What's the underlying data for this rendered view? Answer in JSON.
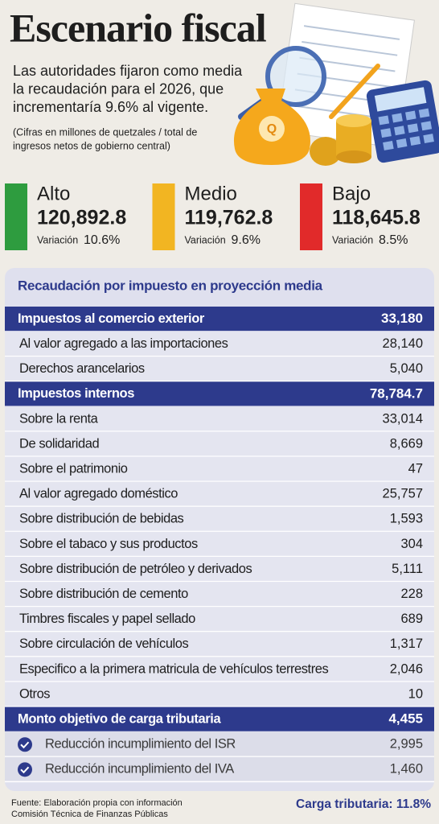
{
  "title": "Escenario fiscal",
  "subtitle": [
    "Las autoridades fijaron como media",
    "la recaudación para el 2026, que",
    "incrementaría 9.6% al vigente."
  ],
  "note": [
    "(Cifras en millones de quetzales / total de",
    "ingresos netos de gobierno central)"
  ],
  "scenarios": [
    {
      "label": "Alto",
      "value": "120,892.8",
      "variation_label": "Variación",
      "variation": "10.6%",
      "color": "#2e9c3f"
    },
    {
      "label": "Medio",
      "value": "119,762.8",
      "variation_label": "Variación",
      "variation": "9.6%",
      "color": "#f2b522"
    },
    {
      "label": "Bajo",
      "value": "118,645.8",
      "variation_label": "Variación",
      "variation": "8.5%",
      "color": "#e12a2a"
    }
  ],
  "table": {
    "heading": "Recaudación por impuesto en proyección media",
    "sections": [
      {
        "title": "Impuestos al comercio exterior",
        "value": "33,180",
        "rows": [
          {
            "label": "Al valor agregado a las importaciones",
            "value": "28,140"
          },
          {
            "label": "Derechos arancelarios",
            "value": "5,040"
          }
        ]
      },
      {
        "title": "Impuestos internos",
        "value": "78,784.7",
        "rows": [
          {
            "label": "Sobre la renta",
            "value": "33,014"
          },
          {
            "label": "De solidaridad",
            "value": "8,669"
          },
          {
            "label": "Sobre el patrimonio",
            "value": "47"
          },
          {
            "label": "Al valor agregado doméstico",
            "value": "25,757"
          },
          {
            "label": "Sobre distribución de bebidas",
            "value": "1,593"
          },
          {
            "label": "Sobre el tabaco y sus productos",
            "value": "304"
          },
          {
            "label": "Sobre distribución de petróleo y derivados",
            "value": "5,111"
          },
          {
            "label": "Sobre distribución de cemento",
            "value": "228"
          },
          {
            "label": "Timbres fiscales y papel sellado",
            "value": "689"
          },
          {
            "label": "Sobre circulación de vehículos",
            "value": "1,317"
          },
          {
            "label": "Especifico a la primera matricula de vehículos terrestres",
            "value": "2,046"
          },
          {
            "label": "Otros",
            "value": "10"
          }
        ]
      },
      {
        "title": "Monto objetivo de carga tributaria",
        "value": "4,455",
        "checked": true,
        "rows": [
          {
            "label": "Reducción incumplimiento del ISR",
            "value": "2,995"
          },
          {
            "label": "Reducción incumplimiento del IVA",
            "value": "1,460"
          }
        ]
      }
    ]
  },
  "footer": {
    "source": [
      "Fuente: Elaboración propia con información",
      "Comisión Técnica de Finanzas Públicas"
    ],
    "carga": "Carga tributaria: 11.8%"
  }
}
